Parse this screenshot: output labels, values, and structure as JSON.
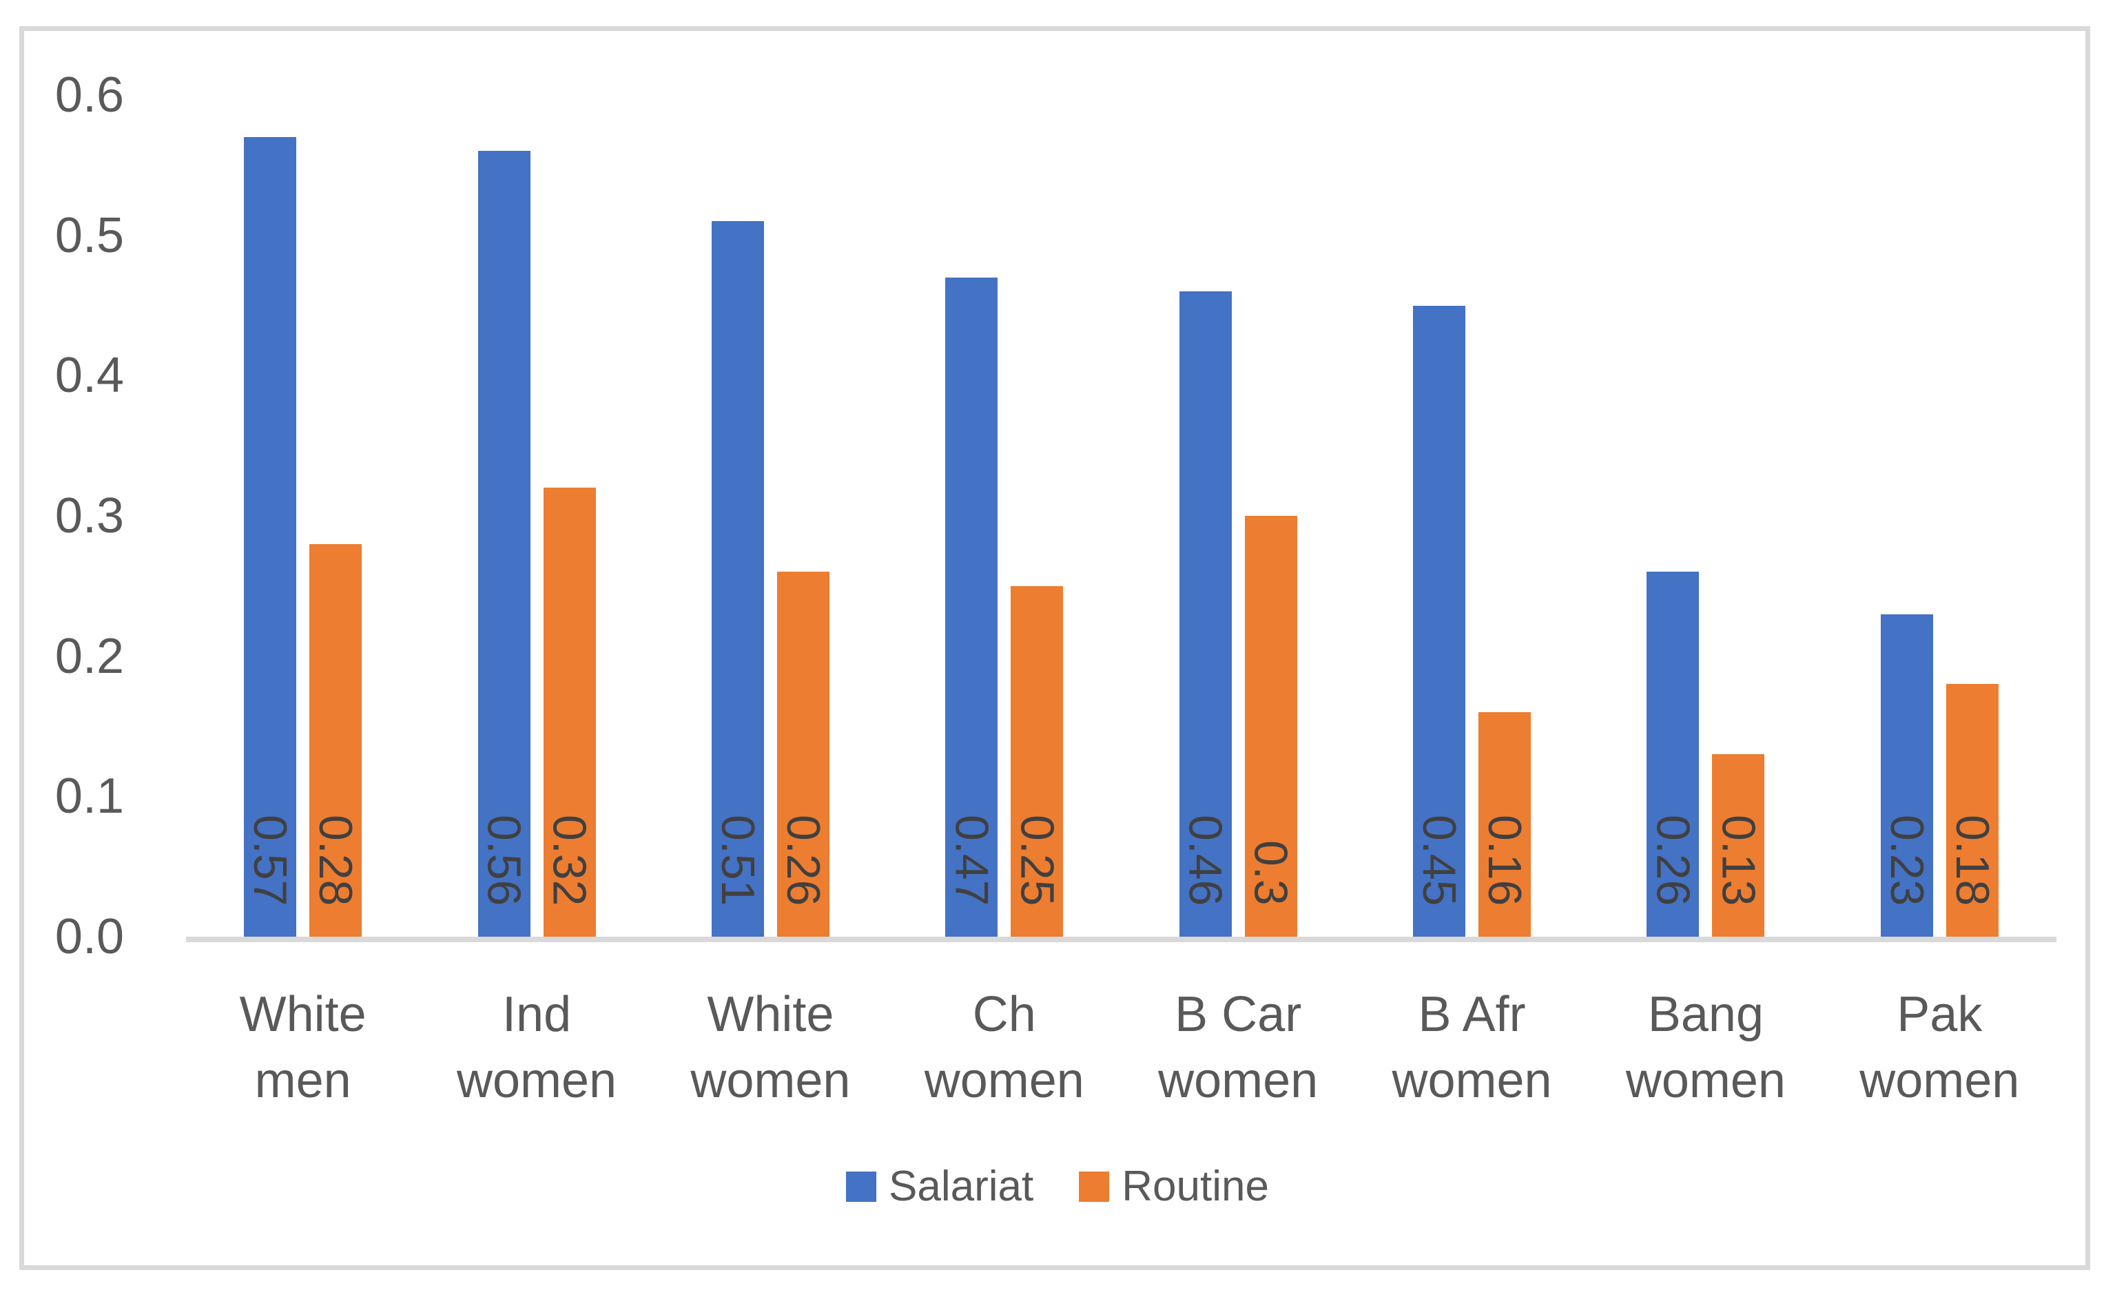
{
  "chart_data": {
    "type": "bar",
    "title": "",
    "xlabel": "",
    "ylabel": "",
    "categories": [
      "White men",
      "Ind women",
      "White women",
      "Ch women",
      "B Car women",
      "B Afr women",
      "Bang women",
      "Pak women"
    ],
    "category_display_lines": [
      [
        "White",
        "men"
      ],
      [
        "Ind",
        "women"
      ],
      [
        "White",
        "women"
      ],
      [
        "Ch women"
      ],
      [
        "B Car",
        "women"
      ],
      [
        "B Afr",
        "women"
      ],
      [
        "Bang",
        "women"
      ],
      [
        "Pak",
        "women"
      ]
    ],
    "series": [
      {
        "name": "Salariat",
        "color": "#4472C4",
        "values": [
          0.57,
          0.56,
          0.51,
          0.47,
          0.46,
          0.45,
          0.26,
          0.23
        ],
        "data_labels": [
          "0.57",
          "0.56",
          "0.51",
          "0.47",
          "0.46",
          "0.45",
          "0.26",
          "0.23"
        ]
      },
      {
        "name": "Routine",
        "color": "#ED7D31",
        "values": [
          0.28,
          0.32,
          0.26,
          0.25,
          0.3,
          0.16,
          0.13,
          0.18
        ],
        "data_labels": [
          "0.28",
          "0.32",
          "0.26",
          "0.25",
          "0.3",
          "0.16",
          "0.13",
          "0.18"
        ]
      }
    ],
    "ylim": [
      0,
      0.6
    ],
    "y_ticks": [
      "0.6",
      "0.5",
      "0.4",
      "0.3",
      "0.2",
      "0.1",
      "0.0"
    ],
    "grid": false,
    "legend_position": "bottom-center",
    "data_label_style": "rotated 90deg, reads top-to-bottom, inside bar near base",
    "colors": {
      "salariat_bar": "#4472C4",
      "routine_bar": "#ED7D31",
      "axis_line": "#D9D9D9",
      "frame_border": "#D9D9D9",
      "tick_label_text": "#595959",
      "category_label_text": "#595959",
      "data_label_text": "#404040",
      "legend_text": "#595959",
      "background": "#FFFFFF"
    }
  }
}
